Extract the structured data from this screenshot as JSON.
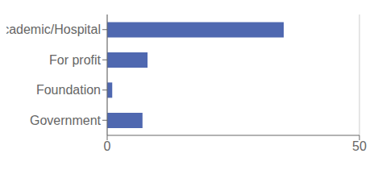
{
  "chart_data": {
    "type": "bar",
    "orientation": "horizontal",
    "categories": [
      "Government",
      "Foundation",
      "For profit",
      "Academic/Hospital"
    ],
    "values": [
      7,
      1,
      8,
      35
    ],
    "color": "#4f68b0",
    "xlim": [
      0,
      50
    ],
    "xticks": [
      0,
      50
    ],
    "grid": true
  }
}
